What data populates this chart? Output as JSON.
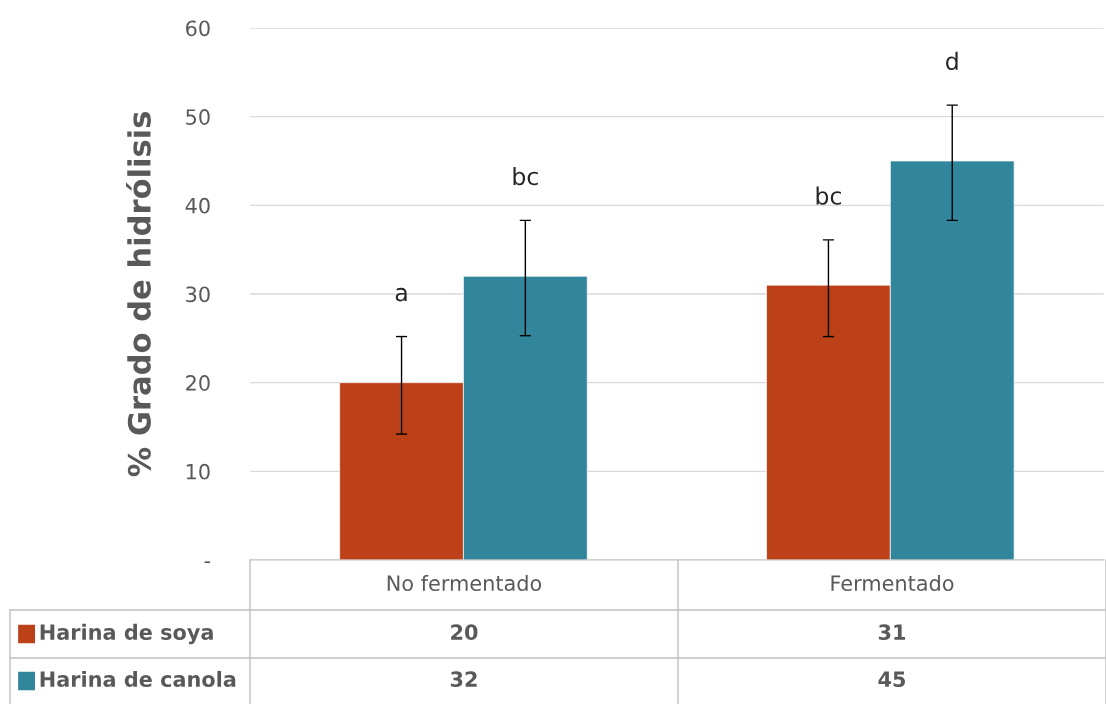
{
  "chart_data": {
    "type": "bar",
    "ylabel": "% Grado de hidrólisis",
    "categories": [
      "No fermentado",
      "Fermentado"
    ],
    "series": [
      {
        "name": "Harina de soya",
        "color": "#bc4119",
        "values": [
          20,
          31
        ],
        "errors": [
          [
            14.2,
            25.2
          ],
          [
            25.2,
            36.1
          ]
        ]
      },
      {
        "name": "Harina de canola",
        "color": "#31869b",
        "values": [
          32,
          45
        ],
        "errors": [
          [
            25.3,
            38.3
          ],
          [
            38.3,
            51.3
          ]
        ]
      }
    ],
    "ylim": [
      0,
      60
    ],
    "yticks": [
      {
        "value": 0,
        "label": "-"
      },
      10,
      20,
      30,
      40,
      50,
      60
    ],
    "grid": "y",
    "legend": "bottom",
    "data_labels": true,
    "annotations": [
      "a",
      "bc",
      "bc",
      "d"
    ]
  }
}
